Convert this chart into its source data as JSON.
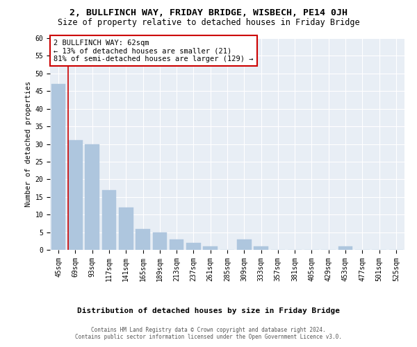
{
  "title1": "2, BULLFINCH WAY, FRIDAY BRIDGE, WISBECH, PE14 0JH",
  "title2": "Size of property relative to detached houses in Friday Bridge",
  "xlabel": "Distribution of detached houses by size in Friday Bridge",
  "ylabel": "Number of detached properties",
  "categories": [
    "45sqm",
    "69sqm",
    "93sqm",
    "117sqm",
    "141sqm",
    "165sqm",
    "189sqm",
    "213sqm",
    "237sqm",
    "261sqm",
    "285sqm",
    "309sqm",
    "333sqm",
    "357sqm",
    "381sqm",
    "405sqm",
    "429sqm",
    "453sqm",
    "477sqm",
    "501sqm",
    "525sqm"
  ],
  "values": [
    47,
    31,
    30,
    17,
    12,
    6,
    5,
    3,
    2,
    1,
    0,
    3,
    1,
    0,
    0,
    0,
    0,
    1,
    0,
    0,
    0
  ],
  "bar_color": "#aec6de",
  "bar_edge_color": "#aec6de",
  "highlight_color": "#cc0000",
  "highlight_index": 1,
  "ylim": [
    0,
    60
  ],
  "yticks": [
    0,
    5,
    10,
    15,
    20,
    25,
    30,
    35,
    40,
    45,
    50,
    55,
    60
  ],
  "annotation_box_text": "2 BULLFINCH WAY: 62sqm\n← 13% of detached houses are smaller (21)\n81% of semi-detached houses are larger (129) →",
  "annotation_box_color": "#cc0000",
  "background_color": "#e8eef5",
  "footer_text": "Contains HM Land Registry data © Crown copyright and database right 2024.\nContains public sector information licensed under the Open Government Licence v3.0.",
  "title1_fontsize": 9.5,
  "title2_fontsize": 8.5,
  "xlabel_fontsize": 8,
  "ylabel_fontsize": 7.5,
  "tick_fontsize": 7,
  "annot_fontsize": 7.5,
  "footer_fontsize": 5.5
}
